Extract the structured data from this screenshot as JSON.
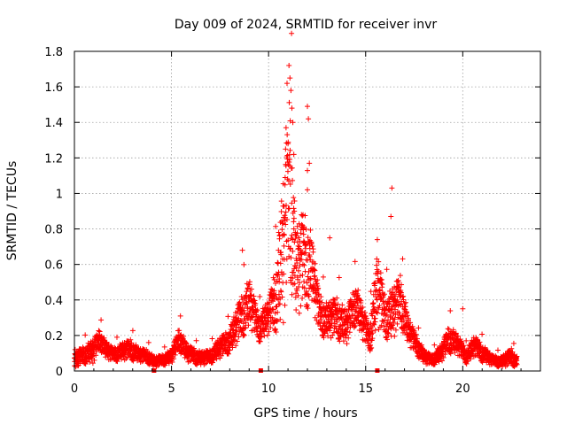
{
  "chart_data": {
    "type": "scatter",
    "title": "Day 009 of 2024, SRMTID for receiver invr",
    "xlabel": "GPS time / hours",
    "ylabel": "SRMTID / TECUs",
    "xlim": [
      0,
      24
    ],
    "ylim": [
      0,
      1.8
    ],
    "x_ticks": [
      0,
      5,
      10,
      15,
      20
    ],
    "x_tick_labels": [
      "0",
      "5",
      "10",
      "15",
      "20"
    ],
    "y_ticks": [
      0,
      0.2,
      0.4,
      0.6,
      0.8,
      1.0,
      1.2,
      1.4,
      1.6,
      1.8
    ],
    "y_tick_labels": [
      "0",
      "0.2",
      "0.4",
      "0.6",
      "0.8",
      "1",
      "1.2",
      "1.4",
      "1.6",
      "1.8"
    ],
    "grid": true,
    "series_color": "#ff0000",
    "marker": "+",
    "series": [
      {
        "name": "SRMTID",
        "profile": [
          [
            0.0,
            0.06,
            0.05
          ],
          [
            0.5,
            0.09,
            0.05
          ],
          [
            1.0,
            0.11,
            0.07
          ],
          [
            1.3,
            0.18,
            0.06
          ],
          [
            1.6,
            0.12,
            0.05
          ],
          [
            2.0,
            0.09,
            0.04
          ],
          [
            2.5,
            0.11,
            0.05
          ],
          [
            2.9,
            0.12,
            0.06
          ],
          [
            3.3,
            0.09,
            0.04
          ],
          [
            3.8,
            0.08,
            0.04
          ],
          [
            4.1,
            0.05,
            0.03
          ],
          [
            4.5,
            0.06,
            0.03
          ],
          [
            5.0,
            0.08,
            0.04
          ],
          [
            5.4,
            0.18,
            0.07
          ],
          [
            5.8,
            0.1,
            0.05
          ],
          [
            6.5,
            0.07,
            0.04
          ],
          [
            7.0,
            0.08,
            0.04
          ],
          [
            7.5,
            0.13,
            0.06
          ],
          [
            8.0,
            0.17,
            0.07
          ],
          [
            8.5,
            0.28,
            0.12
          ],
          [
            9.0,
            0.38,
            0.14
          ],
          [
            9.5,
            0.24,
            0.08
          ],
          [
            10.0,
            0.3,
            0.1
          ],
          [
            10.4,
            0.42,
            0.2
          ],
          [
            10.8,
            0.7,
            0.45
          ],
          [
            11.1,
            1.05,
            0.55
          ],
          [
            11.4,
            0.55,
            0.25
          ],
          [
            11.8,
            0.62,
            0.3
          ],
          [
            12.2,
            0.58,
            0.2
          ],
          [
            12.6,
            0.32,
            0.12
          ],
          [
            13.0,
            0.28,
            0.1
          ],
          [
            13.5,
            0.3,
            0.12
          ],
          [
            14.0,
            0.24,
            0.1
          ],
          [
            14.5,
            0.38,
            0.12
          ],
          [
            14.8,
            0.28,
            0.1
          ],
          [
            15.2,
            0.18,
            0.08
          ],
          [
            15.6,
            0.45,
            0.22
          ],
          [
            16.0,
            0.3,
            0.12
          ],
          [
            16.4,
            0.32,
            0.15
          ],
          [
            16.8,
            0.4,
            0.15
          ],
          [
            17.2,
            0.22,
            0.08
          ],
          [
            17.6,
            0.15,
            0.06
          ],
          [
            18.0,
            0.08,
            0.04
          ],
          [
            18.4,
            0.06,
            0.03
          ],
          [
            18.9,
            0.1,
            0.05
          ],
          [
            19.3,
            0.18,
            0.08
          ],
          [
            19.7,
            0.15,
            0.06
          ],
          [
            20.2,
            0.08,
            0.04
          ],
          [
            20.6,
            0.14,
            0.06
          ],
          [
            21.0,
            0.1,
            0.05
          ],
          [
            21.5,
            0.06,
            0.03
          ],
          [
            22.0,
            0.05,
            0.03
          ],
          [
            22.5,
            0.08,
            0.05
          ],
          [
            22.8,
            0.05,
            0.03
          ]
        ],
        "outliers": [
          [
            10.95,
            1.62
          ],
          [
            11.05,
            1.72
          ],
          [
            11.1,
            1.65
          ],
          [
            11.15,
            1.58
          ],
          [
            11.2,
            1.48
          ],
          [
            11.25,
            1.4
          ],
          [
            10.9,
            1.37
          ],
          [
            11.0,
            1.28
          ],
          [
            11.3,
            1.22
          ],
          [
            12.0,
            1.49
          ],
          [
            12.05,
            1.42
          ],
          [
            12.1,
            1.17
          ],
          [
            12.0,
            1.02
          ],
          [
            16.35,
            1.03
          ],
          [
            16.3,
            0.87
          ],
          [
            13.15,
            0.75
          ],
          [
            15.6,
            0.74
          ],
          [
            8.65,
            0.68
          ],
          [
            20.0,
            0.35
          ]
        ],
        "gap_markers_x": [
          4.1,
          9.6,
          15.6
        ]
      }
    ]
  }
}
